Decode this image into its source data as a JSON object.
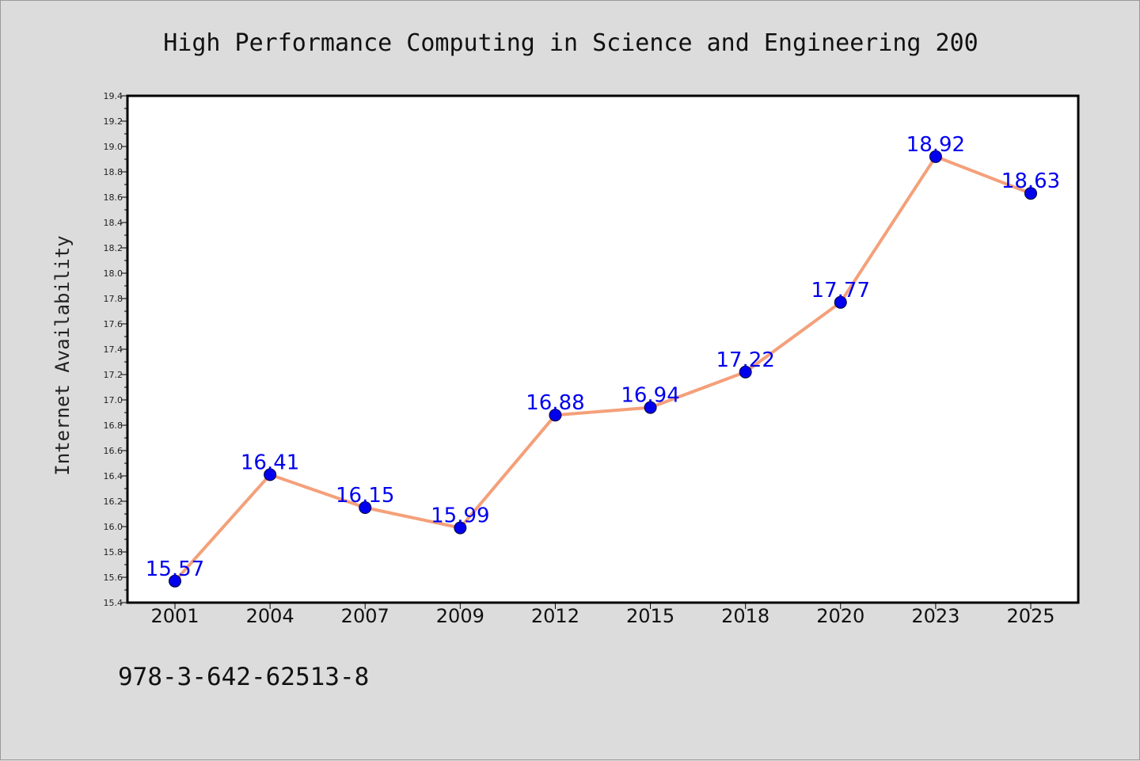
{
  "chart_data": {
    "type": "line",
    "title": "High Performance Computing in Science and Engineering 200",
    "ylabel": "Internet Availability",
    "xlabel": "",
    "categories": [
      "2001",
      "2004",
      "2007",
      "2009",
      "2012",
      "2015",
      "2018",
      "2020",
      "2023",
      "2025"
    ],
    "series": [
      {
        "values": [
          15.57,
          16.41,
          16.15,
          15.99,
          16.88,
          16.94,
          17.22,
          17.77,
          18.92,
          18.63
        ],
        "line_color": "#f4a07a",
        "marker_color": "#0000ee"
      }
    ],
    "value_labels": [
      "15.57",
      "16.41",
      "16.15",
      "15.99",
      "16.88",
      "16.94",
      "17.22",
      "17.77",
      "18.92",
      "18.63"
    ],
    "ylim": [
      15.4,
      19.4
    ],
    "yticks": [
      "15.4",
      "15.6",
      "15.8",
      "16.0",
      "16.2",
      "16.4",
      "16.6",
      "16.8",
      "17.0",
      "17.2",
      "17.4",
      "17.6",
      "17.8",
      "18.0",
      "18.2",
      "18.4",
      "18.6",
      "18.8",
      "19.0",
      "19.2",
      "19.4"
    ],
    "grid": false,
    "legend": "none"
  },
  "footer": {
    "isbn": "978-3-642-62513-8"
  }
}
